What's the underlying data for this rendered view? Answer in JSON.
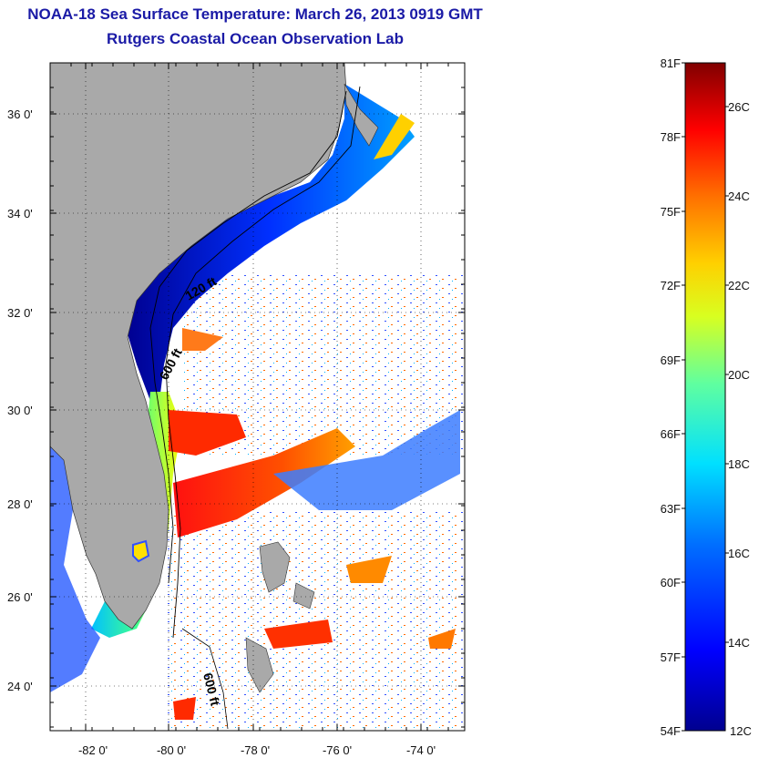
{
  "title": "NOAA-18 Sea Surface Temperature:  March 26, 2013 0919 GMT",
  "subtitle": "Rutgers Coastal Ocean Observation Lab",
  "map": {
    "lon_labels": [
      "-82 0'",
      "-80 0'",
      "-78 0'",
      "-76 0'",
      "-74 0'"
    ],
    "lat_labels": [
      "36 0'",
      "34 0'",
      "32 0'",
      "30 0'",
      "28 0'",
      "26 0'",
      "24 0'"
    ],
    "contour_labels": [
      "120 ft",
      "600 ft",
      "600 ft"
    ],
    "land_color": "#a9a9a9",
    "ocean_no_data_color": "#ffffff"
  },
  "colorbar": {
    "fahrenheit_labels": [
      "81F",
      "78F",
      "75F",
      "72F",
      "69F",
      "66F",
      "63F",
      "60F",
      "57F",
      "54F"
    ],
    "celsius_labels": [
      "26C",
      "24C",
      "22C",
      "20C",
      "18C",
      "16C",
      "14C",
      "12C"
    ],
    "colors": [
      "#00008f",
      "#0000ff",
      "#0080ff",
      "#00ffff",
      "#80ff80",
      "#ffff00",
      "#ff8000",
      "#ff0000",
      "#800000"
    ]
  }
}
